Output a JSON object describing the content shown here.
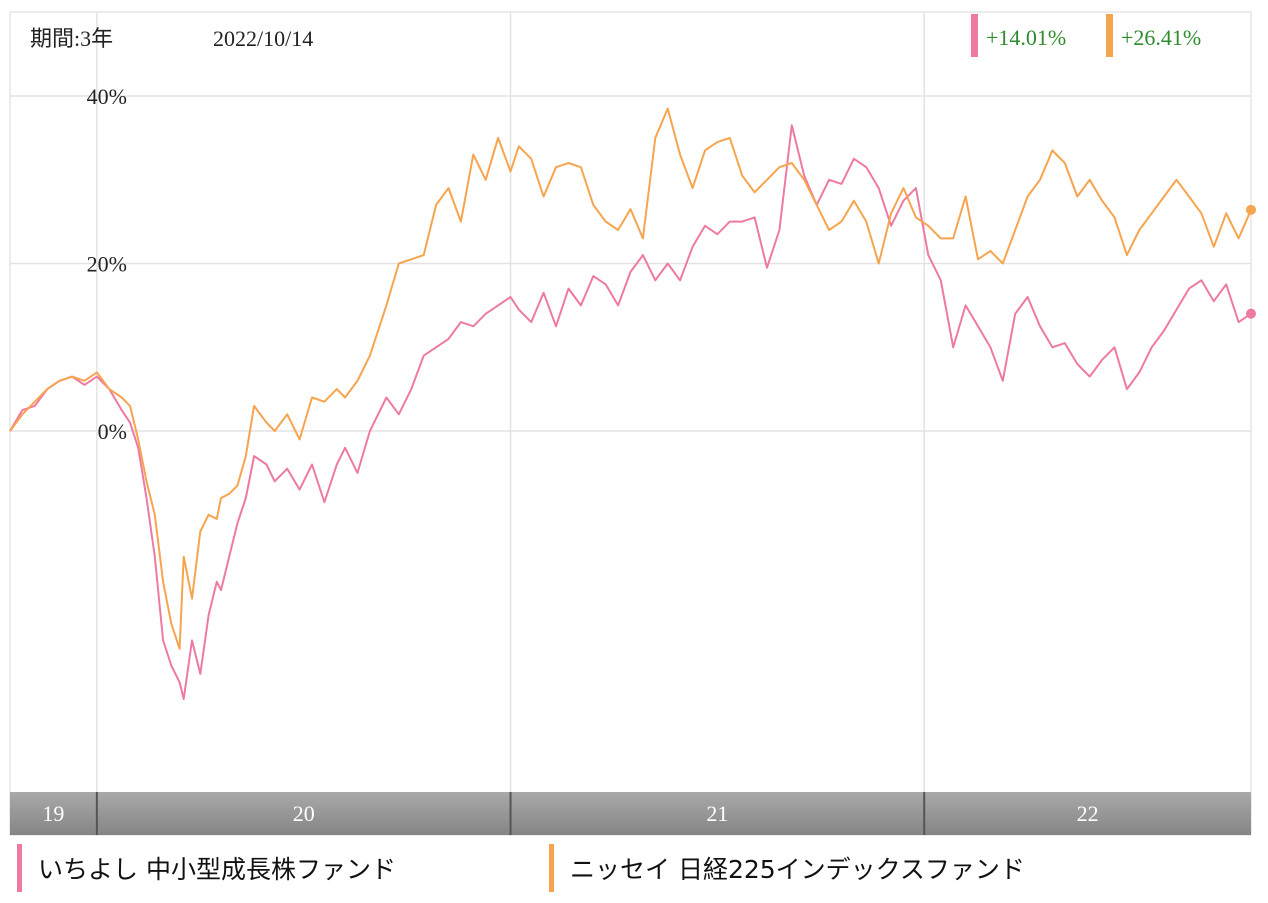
{
  "header": {
    "period_label": "期間:3年",
    "date": "2022/10/14"
  },
  "chart_data": {
    "type": "line",
    "y_unit": "%",
    "ylim": [
      -35,
      40
    ],
    "y_ticks": [
      {
        "value": 40,
        "label": "40%"
      },
      {
        "value": 20,
        "label": "20%"
      },
      {
        "value": 0,
        "label": "0%"
      }
    ],
    "x_range": [
      2019.79,
      2022.79
    ],
    "year_bands": [
      {
        "label": "19",
        "start": 2019.79,
        "end": 2020.0
      },
      {
        "label": "20",
        "start": 2020.0,
        "end": 2021.0
      },
      {
        "label": "21",
        "start": 2021.0,
        "end": 2022.0
      },
      {
        "label": "22",
        "start": 2022.0,
        "end": 2022.79
      }
    ],
    "grid": true,
    "series": [
      {
        "name": "いちよし 中小型成長株ファンド",
        "color": "#ee7aa3",
        "final_label": "+14.01%",
        "x": [
          2019.79,
          2019.82,
          2019.85,
          2019.88,
          2019.91,
          2019.94,
          2019.97,
          2020.0,
          2020.03,
          2020.06,
          2020.08,
          2020.1,
          2020.12,
          2020.14,
          2020.16,
          2020.18,
          2020.2,
          2020.21,
          2020.23,
          2020.25,
          2020.27,
          2020.29,
          2020.3,
          2020.32,
          2020.34,
          2020.36,
          2020.38,
          2020.41,
          2020.43,
          2020.46,
          2020.49,
          2020.52,
          2020.55,
          2020.58,
          2020.6,
          2020.63,
          2020.66,
          2020.7,
          2020.73,
          2020.76,
          2020.79,
          2020.82,
          2020.85,
          2020.88,
          2020.91,
          2020.94,
          2020.97,
          2021.0,
          2021.02,
          2021.05,
          2021.08,
          2021.11,
          2021.14,
          2021.17,
          2021.2,
          2021.23,
          2021.26,
          2021.29,
          2021.32,
          2021.35,
          2021.38,
          2021.41,
          2021.44,
          2021.47,
          2021.5,
          2021.53,
          2021.56,
          2021.59,
          2021.62,
          2021.65,
          2021.68,
          2021.71,
          2021.74,
          2021.77,
          2021.8,
          2021.83,
          2021.86,
          2021.89,
          2021.92,
          2021.95,
          2021.98,
          2022.01,
          2022.04,
          2022.07,
          2022.1,
          2022.13,
          2022.16,
          2022.19,
          2022.22,
          2022.25,
          2022.28,
          2022.31,
          2022.34,
          2022.37,
          2022.4,
          2022.43,
          2022.46,
          2022.49,
          2022.52,
          2022.55,
          2022.58,
          2022.61,
          2022.64,
          2022.67,
          2022.7,
          2022.73,
          2022.76,
          2022.79
        ],
        "values": [
          0.0,
          2.5,
          3.0,
          5.0,
          6.0,
          6.5,
          5.5,
          6.5,
          5.0,
          2.5,
          1.0,
          -2.0,
          -8.0,
          -15.0,
          -25.0,
          -28.0,
          -30.0,
          -32.0,
          -25.0,
          -29.0,
          -22.0,
          -18.0,
          -19.0,
          -15.0,
          -11.0,
          -8.0,
          -3.0,
          -4.0,
          -6.0,
          -4.5,
          -7.0,
          -4.0,
          -8.5,
          -4.0,
          -2.0,
          -5.0,
          0.0,
          4.0,
          2.0,
          5.0,
          9.0,
          10.0,
          11.0,
          13.0,
          12.5,
          14.0,
          15.0,
          16.0,
          14.5,
          13.0,
          16.5,
          12.5,
          17.0,
          15.0,
          18.5,
          17.5,
          15.0,
          19.0,
          21.0,
          18.0,
          20.0,
          18.0,
          22.0,
          24.5,
          23.5,
          25.0,
          25.0,
          25.5,
          19.5,
          24.0,
          36.5,
          30.5,
          27.0,
          30.0,
          29.5,
          32.5,
          31.5,
          29.0,
          24.5,
          27.5,
          29.0,
          21.0,
          18.0,
          10.0,
          15.0,
          12.5,
          10.0,
          6.0,
          14.0,
          16.0,
          12.5,
          10.0,
          10.5,
          8.0,
          6.5,
          8.5,
          10.0,
          5.0,
          7.0,
          10.0,
          12.0,
          14.5,
          17.0,
          18.0,
          15.5,
          17.5,
          13.0,
          14.01
        ]
      },
      {
        "name": "ニッセイ 日経225インデックスファンド",
        "color": "#f7a44f",
        "final_label": "+26.41%",
        "x": [
          2019.79,
          2019.82,
          2019.85,
          2019.88,
          2019.91,
          2019.94,
          2019.97,
          2020.0,
          2020.03,
          2020.06,
          2020.08,
          2020.1,
          2020.12,
          2020.14,
          2020.16,
          2020.18,
          2020.2,
          2020.21,
          2020.23,
          2020.25,
          2020.27,
          2020.29,
          2020.3,
          2020.32,
          2020.34,
          2020.36,
          2020.38,
          2020.41,
          2020.43,
          2020.46,
          2020.49,
          2020.52,
          2020.55,
          2020.58,
          2020.6,
          2020.63,
          2020.66,
          2020.7,
          2020.73,
          2020.76,
          2020.79,
          2020.82,
          2020.85,
          2020.88,
          2020.91,
          2020.94,
          2020.97,
          2021.0,
          2021.02,
          2021.05,
          2021.08,
          2021.11,
          2021.14,
          2021.17,
          2021.2,
          2021.23,
          2021.26,
          2021.29,
          2021.32,
          2021.35,
          2021.38,
          2021.41,
          2021.44,
          2021.47,
          2021.5,
          2021.53,
          2021.56,
          2021.59,
          2021.62,
          2021.65,
          2021.68,
          2021.71,
          2021.74,
          2021.77,
          2021.8,
          2021.83,
          2021.86,
          2021.89,
          2021.92,
          2021.95,
          2021.98,
          2022.01,
          2022.04,
          2022.07,
          2022.1,
          2022.13,
          2022.16,
          2022.19,
          2022.22,
          2022.25,
          2022.28,
          2022.31,
          2022.34,
          2022.37,
          2022.4,
          2022.43,
          2022.46,
          2022.49,
          2022.52,
          2022.55,
          2022.58,
          2022.61,
          2022.64,
          2022.67,
          2022.7,
          2022.73,
          2022.76,
          2022.79
        ],
        "values": [
          0.0,
          2.0,
          3.5,
          5.0,
          6.0,
          6.5,
          6.0,
          7.0,
          5.0,
          4.0,
          3.0,
          -1.0,
          -6.0,
          -10.0,
          -18.0,
          -23.0,
          -26.0,
          -15.0,
          -20.0,
          -12.0,
          -10.0,
          -10.5,
          -8.0,
          -7.5,
          -6.5,
          -3.0,
          3.0,
          1.0,
          0.0,
          2.0,
          -1.0,
          4.0,
          3.5,
          5.0,
          4.0,
          6.0,
          9.0,
          15.0,
          20.0,
          20.5,
          21.0,
          27.0,
          29.0,
          25.0,
          33.0,
          30.0,
          35.0,
          31.0,
          34.0,
          32.5,
          28.0,
          31.5,
          32.0,
          31.5,
          27.0,
          25.0,
          24.0,
          26.5,
          23.0,
          35.0,
          38.5,
          33.0,
          29.0,
          33.5,
          34.5,
          35.0,
          30.5,
          28.5,
          30.0,
          31.5,
          32.0,
          30.0,
          27.0,
          24.0,
          25.0,
          27.5,
          25.0,
          20.0,
          26.0,
          29.0,
          25.5,
          24.5,
          23.0,
          23.0,
          28.0,
          20.5,
          21.5,
          20.0,
          24.0,
          28.0,
          30.0,
          33.5,
          32.0,
          28.0,
          30.0,
          27.5,
          25.5,
          21.0,
          24.0,
          26.0,
          28.0,
          30.0,
          28.0,
          26.0,
          22.0,
          26.0,
          23.0,
          26.41
        ]
      }
    ]
  }
}
